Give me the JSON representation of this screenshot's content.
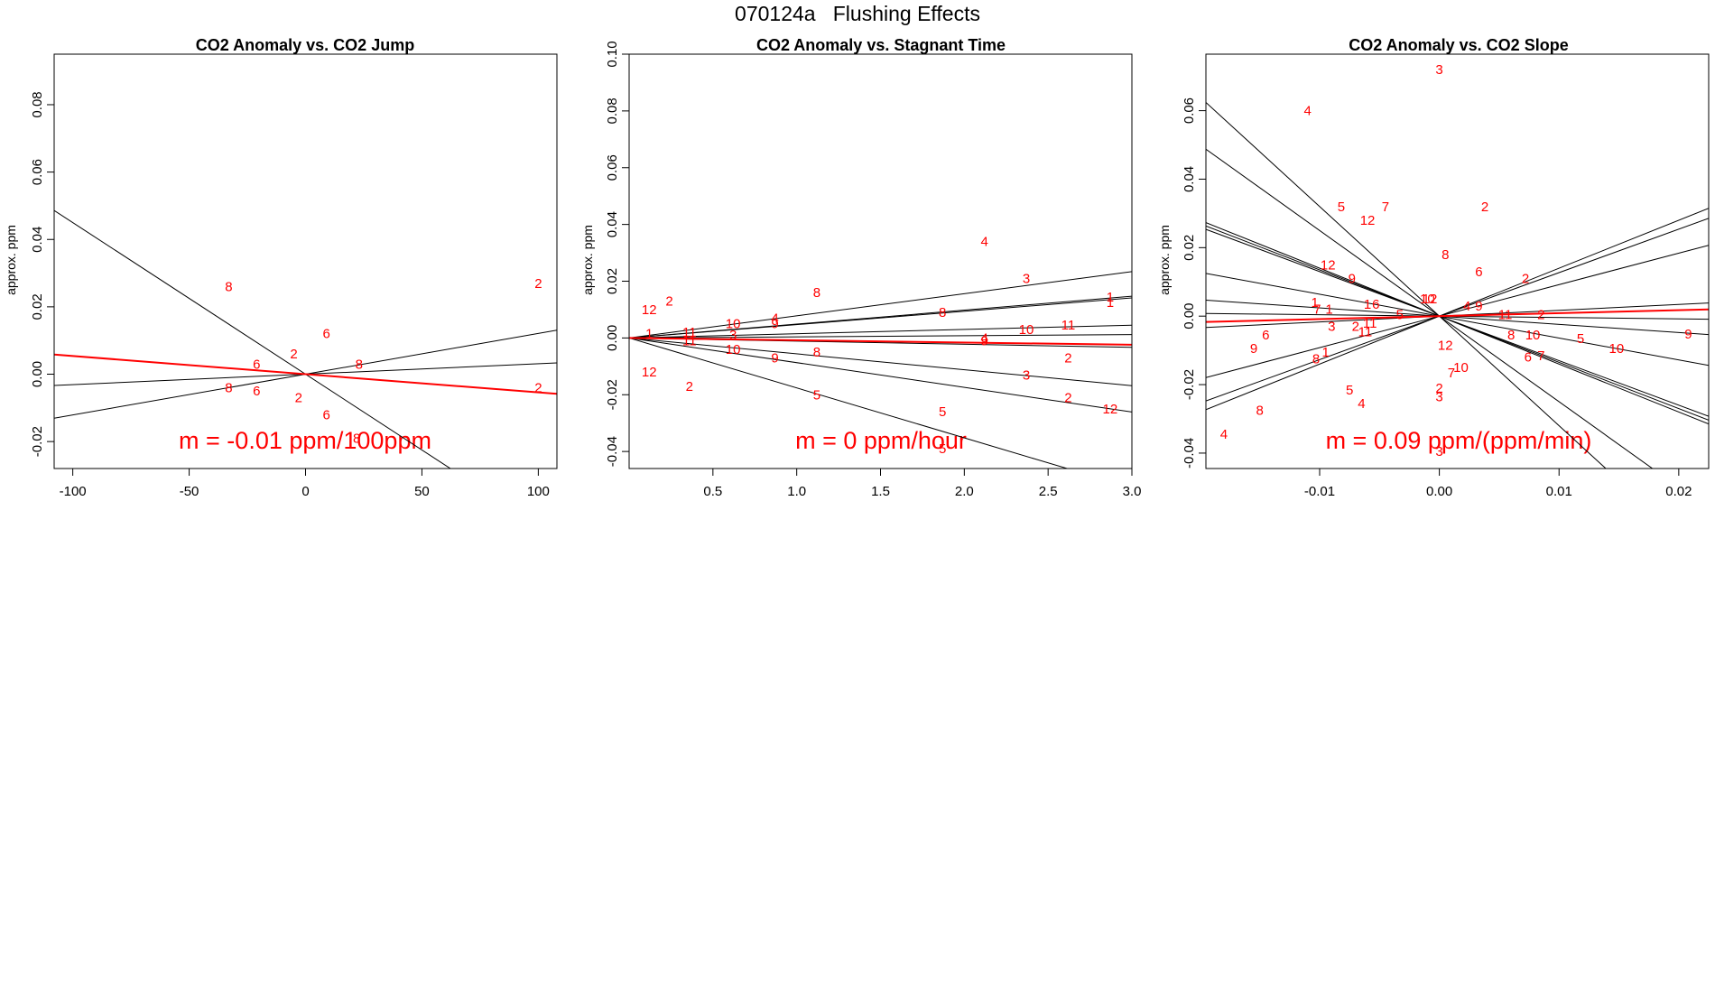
{
  "figure": {
    "title": "070124a   Flushing Effects"
  },
  "chart_data": [
    {
      "type": "scatter",
      "title": "CO2 Anomaly vs. CO2 Jump",
      "xlabel": "",
      "ylabel": "approx. ppm",
      "xlim": [
        -108,
        108
      ],
      "ylim": [
        -0.028,
        0.095
      ],
      "xticks": [
        "-100",
        "-50",
        "0",
        "50",
        "100"
      ],
      "xtick_values": [
        -100,
        -50,
        0,
        50,
        100
      ],
      "yticks": [
        "-0.02",
        "0.00",
        "0.02",
        "0.04",
        "0.06",
        "0.08"
      ],
      "ytick_values": [
        -0.02,
        0,
        0.02,
        0.04,
        0.06,
        0.08
      ],
      "points": [
        {
          "x": -33,
          "y": 0.026,
          "label": "8"
        },
        {
          "x": 100,
          "y": 0.027,
          "label": "2"
        },
        {
          "x": 9,
          "y": 0.012,
          "label": "6"
        },
        {
          "x": -5,
          "y": 0.006,
          "label": "2"
        },
        {
          "x": -21,
          "y": 0.003,
          "label": "6"
        },
        {
          "x": 23,
          "y": 0.003,
          "label": "8"
        },
        {
          "x": -33,
          "y": -0.004,
          "label": "8"
        },
        {
          "x": -21,
          "y": -0.005,
          "label": "6"
        },
        {
          "x": -3,
          "y": -0.007,
          "label": "2"
        },
        {
          "x": 9,
          "y": -0.012,
          "label": "6"
        },
        {
          "x": 100,
          "y": -0.004,
          "label": "2"
        },
        {
          "x": 22,
          "y": -0.019,
          "label": "8"
        }
      ],
      "lines": [
        {
          "slope": -0.00045,
          "color": "#000000"
        },
        {
          "slope": 0.000121,
          "color": "#000000"
        },
        {
          "slope": 3.1e-05,
          "color": "#000000"
        },
        {
          "slope": -5.4e-05,
          "color": "#ff0000",
          "fit": true
        }
      ],
      "annotation": "m = -0.01 ppm/100ppm"
    },
    {
      "type": "scatter",
      "title": "CO2 Anomaly vs. Stagnant Time",
      "xlabel": "",
      "ylabel": "approx. ppm",
      "xlim": [
        0,
        3.0
      ],
      "ylim": [
        -0.046,
        0.1
      ],
      "xticks": [
        "0.5",
        "1.0",
        "1.5",
        "2.0",
        "2.5",
        "3.0"
      ],
      "xtick_values": [
        0.5,
        1.0,
        1.5,
        2.0,
        2.5,
        3.0
      ],
      "yticks": [
        "-0.04",
        "-0.02",
        "0.00",
        "0.02",
        "0.04",
        "0.06",
        "0.08",
        "0.10"
      ],
      "ytick_values": [
        -0.04,
        -0.02,
        0,
        0.02,
        0.04,
        0.06,
        0.08,
        0.1
      ],
      "points": [
        {
          "x": 0.12,
          "y": 0.01,
          "label": "12"
        },
        {
          "x": 0.24,
          "y": 0.013,
          "label": "2"
        },
        {
          "x": 0.12,
          "y": -0.012,
          "label": "12"
        },
        {
          "x": 0.36,
          "y": -0.017,
          "label": "2"
        },
        {
          "x": 0.12,
          "y": 0.0015,
          "label": "1"
        },
        {
          "x": 0.36,
          "y": 0.002,
          "label": "11"
        },
        {
          "x": 0.36,
          "y": -0.001,
          "label": "11"
        },
        {
          "x": 0.62,
          "y": 0.005,
          "label": "10"
        },
        {
          "x": 0.62,
          "y": 0.001,
          "label": "3"
        },
        {
          "x": 0.62,
          "y": -0.004,
          "label": "10"
        },
        {
          "x": 0.87,
          "y": 0.007,
          "label": "4"
        },
        {
          "x": 0.87,
          "y": 0.005,
          "label": "9"
        },
        {
          "x": 0.87,
          "y": -0.007,
          "label": "9"
        },
        {
          "x": 1.12,
          "y": 0.016,
          "label": "8"
        },
        {
          "x": 1.12,
          "y": -0.005,
          "label": "8"
        },
        {
          "x": 1.12,
          "y": -0.02,
          "label": "5"
        },
        {
          "x": 1.87,
          "y": 0.009,
          "label": "8"
        },
        {
          "x": 1.87,
          "y": -0.026,
          "label": "5"
        },
        {
          "x": 1.87,
          "y": -0.039,
          "label": "5"
        },
        {
          "x": 2.12,
          "y": 0.034,
          "label": "4"
        },
        {
          "x": 2.12,
          "y": 0.0,
          "label": "4"
        },
        {
          "x": 2.12,
          "y": -0.001,
          "label": "9"
        },
        {
          "x": 2.37,
          "y": 0.021,
          "label": "3"
        },
        {
          "x": 2.37,
          "y": 0.003,
          "label": "10"
        },
        {
          "x": 2.37,
          "y": -0.013,
          "label": "3"
        },
        {
          "x": 2.62,
          "y": 0.0045,
          "label": "11"
        },
        {
          "x": 2.62,
          "y": -0.007,
          "label": "2"
        },
        {
          "x": 2.62,
          "y": -0.021,
          "label": "2"
        },
        {
          "x": 2.87,
          "y": 0.0145,
          "label": "1"
        },
        {
          "x": 2.87,
          "y": 0.0125,
          "label": "1"
        },
        {
          "x": 2.87,
          "y": -0.025,
          "label": "12"
        }
      ],
      "lines": [
        {
          "slope": 0.0078,
          "color": "#000000"
        },
        {
          "slope": 0.0049,
          "color": "#000000"
        },
        {
          "slope": 0.0047,
          "color": "#000000"
        },
        {
          "slope": 0.0015,
          "color": "#000000"
        },
        {
          "slope": 0.0004,
          "color": "#000000"
        },
        {
          "slope": -0.0011,
          "color": "#000000"
        },
        {
          "slope": -0.0056,
          "color": "#000000"
        },
        {
          "slope": -0.0087,
          "color": "#000000"
        },
        {
          "slope": -0.0176,
          "color": "#000000"
        },
        {
          "slope": -0.0008,
          "color": "#ff0000",
          "fit": true
        }
      ],
      "annotation": "m = 0 ppm/hour"
    },
    {
      "type": "scatter",
      "title": "CO2 Anomaly vs. CO2 Slope",
      "xlabel": "",
      "ylabel": "approx. ppm",
      "xlim": [
        -0.0195,
        0.0225
      ],
      "ylim": [
        -0.0445,
        0.0765
      ],
      "xticks": [
        "-0.01",
        "0.00",
        "0.01",
        "0.02"
      ],
      "xtick_values": [
        -0.01,
        0.0,
        0.01,
        0.02
      ],
      "yticks": [
        "-0.04",
        "-0.02",
        "0.00",
        "0.02",
        "0.04",
        "0.06"
      ],
      "ytick_values": [
        -0.04,
        -0.02,
        0,
        0.02,
        0.04,
        0.06
      ],
      "points": [
        {
          "x": 0.0,
          "y": 0.072,
          "label": "3"
        },
        {
          "x": -0.011,
          "y": 0.06,
          "label": "4"
        },
        {
          "x": -0.0082,
          "y": 0.032,
          "label": "5"
        },
        {
          "x": -0.0045,
          "y": 0.032,
          "label": "7"
        },
        {
          "x": -0.006,
          "y": 0.028,
          "label": "12"
        },
        {
          "x": 0.0038,
          "y": 0.032,
          "label": "2"
        },
        {
          "x": 0.0005,
          "y": 0.018,
          "label": "8"
        },
        {
          "x": -0.0093,
          "y": 0.015,
          "label": "12"
        },
        {
          "x": -0.0073,
          "y": 0.011,
          "label": "9"
        },
        {
          "x": 0.0033,
          "y": 0.013,
          "label": "6"
        },
        {
          "x": 0.0072,
          "y": 0.011,
          "label": "2"
        },
        {
          "x": -0.0104,
          "y": 0.004,
          "label": "1"
        },
        {
          "x": -0.0102,
          "y": 0.002,
          "label": "7"
        },
        {
          "x": -0.0092,
          "y": 0.002,
          "label": "1"
        },
        {
          "x": -0.006,
          "y": 0.0035,
          "label": "1"
        },
        {
          "x": -0.0053,
          "y": 0.0035,
          "label": "6"
        },
        {
          "x": -0.001,
          "y": 0.005,
          "label": "10"
        },
        {
          "x": -0.0008,
          "y": 0.005,
          "label": "12"
        },
        {
          "x": -0.0033,
          "y": 0.0005,
          "label": "5"
        },
        {
          "x": 0.0023,
          "y": 0.003,
          "label": "4"
        },
        {
          "x": 0.0033,
          "y": 0.003,
          "label": "9"
        },
        {
          "x": 0.0055,
          "y": 0.0005,
          "label": "11"
        },
        {
          "x": 0.0085,
          "y": 0.0005,
          "label": "2"
        },
        {
          "x": -0.009,
          "y": -0.003,
          "label": "3"
        },
        {
          "x": -0.007,
          "y": -0.003,
          "label": "2"
        },
        {
          "x": -0.0058,
          "y": -0.002,
          "label": "11"
        },
        {
          "x": -0.0062,
          "y": -0.0045,
          "label": "11"
        },
        {
          "x": -0.0145,
          "y": -0.0055,
          "label": "6"
        },
        {
          "x": -0.0155,
          "y": -0.0095,
          "label": "9"
        },
        {
          "x": -0.0103,
          "y": -0.0125,
          "label": "8"
        },
        {
          "x": -0.0095,
          "y": -0.0105,
          "label": "1"
        },
        {
          "x": 0.0005,
          "y": -0.0085,
          "label": "12"
        },
        {
          "x": 0.006,
          "y": -0.0055,
          "label": "8"
        },
        {
          "x": 0.0078,
          "y": -0.0055,
          "label": "10"
        },
        {
          "x": 0.0118,
          "y": -0.0065,
          "label": "5"
        },
        {
          "x": 0.0148,
          "y": -0.0095,
          "label": "10"
        },
        {
          "x": 0.0208,
          "y": -0.0052,
          "label": "9"
        },
        {
          "x": 0.0074,
          "y": -0.012,
          "label": "6"
        },
        {
          "x": 0.0085,
          "y": -0.0115,
          "label": "7"
        },
        {
          "x": 0.0018,
          "y": -0.015,
          "label": "10"
        },
        {
          "x": 0.001,
          "y": -0.0165,
          "label": "7"
        },
        {
          "x": 0.0,
          "y": -0.021,
          "label": "2"
        },
        {
          "x": 0.0,
          "y": -0.0235,
          "label": "3"
        },
        {
          "x": -0.0075,
          "y": -0.0215,
          "label": "5"
        },
        {
          "x": -0.0065,
          "y": -0.0255,
          "label": "4"
        },
        {
          "x": -0.015,
          "y": -0.0275,
          "label": "8"
        },
        {
          "x": -0.018,
          "y": -0.0345,
          "label": "4"
        },
        {
          "x": 0.0,
          "y": -0.0395,
          "label": "3"
        }
      ],
      "lines": [
        {
          "slope": -2.5,
          "color": "#000000"
        },
        {
          "slope": -3.2,
          "color": "#000000"
        },
        {
          "slope": -1.35,
          "color": "#000000"
        },
        {
          "slope": -0.64,
          "color": "#000000"
        },
        {
          "slope": -0.24,
          "color": "#000000"
        },
        {
          "slope": -0.04,
          "color": "#000000"
        },
        {
          "slope": 0.17,
          "color": "#000000"
        },
        {
          "slope": 0.92,
          "color": "#000000"
        },
        {
          "slope": 1.27,
          "color": "#000000"
        },
        {
          "slope": 1.4,
          "color": "#000000"
        },
        {
          "slope": -1.4,
          "color": "#000000"
        },
        {
          "slope": -1.3,
          "color": "#000000"
        },
        {
          "slope": 0.0875,
          "color": "#ff0000",
          "fit": true
        }
      ],
      "annotation": "m = 0.09 ppm/(ppm/min)"
    }
  ]
}
